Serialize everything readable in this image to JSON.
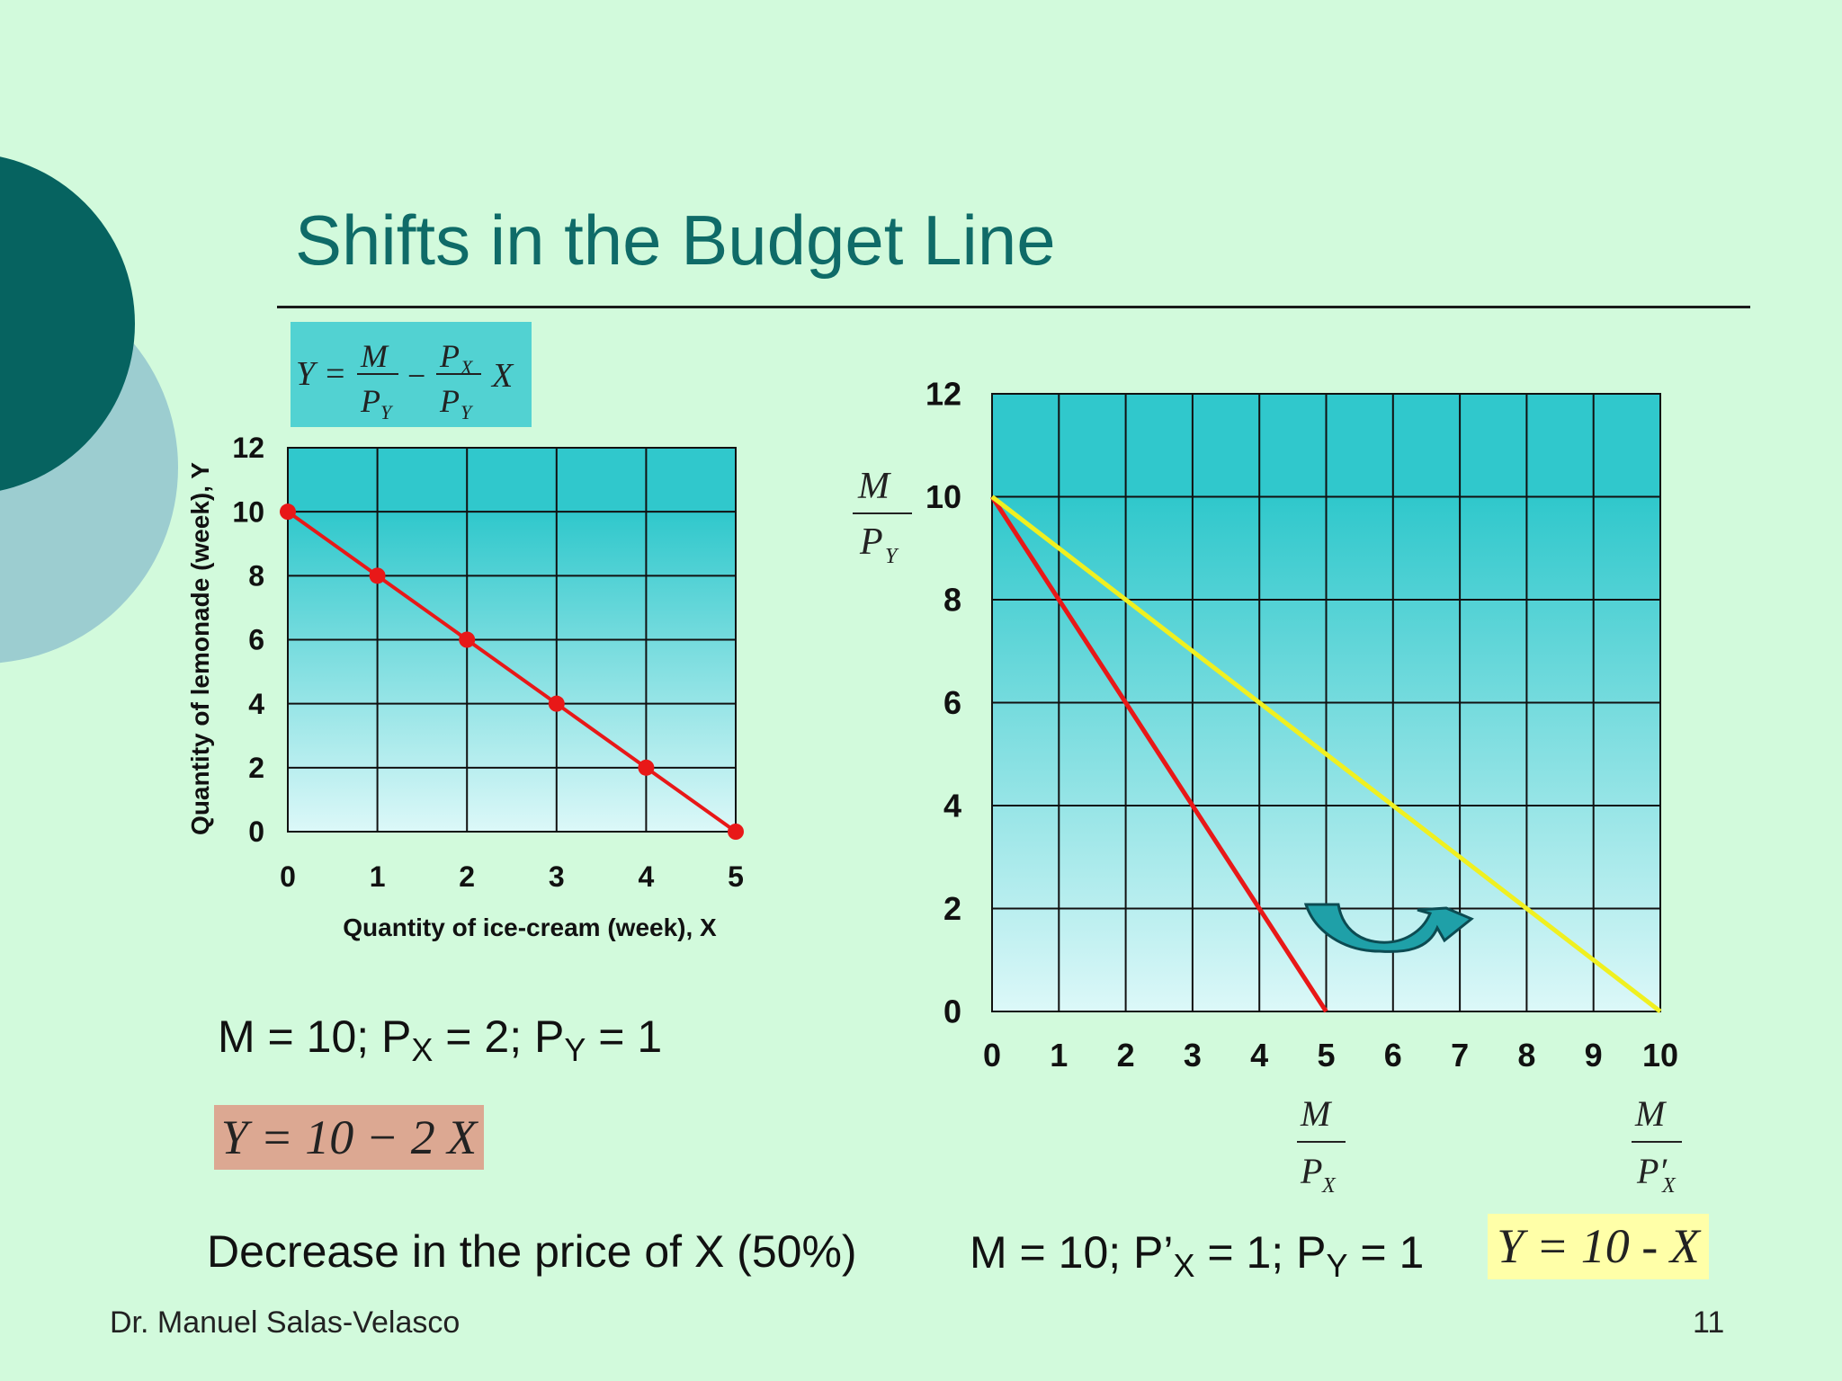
{
  "slide": {
    "title": "Shifts in the Budget Line",
    "author": "Dr. Manuel Salas-Velasco",
    "page_number": "11",
    "caption": "Decrease in the price of X (50%)"
  },
  "formula": {
    "lhs": "Y =",
    "m": "M",
    "py": "P",
    "py_sub": "Y",
    "minus": "−",
    "px": "P",
    "px_sub": "X",
    "py2": "P",
    "py2_sub": "Y",
    "x": "X"
  },
  "params1": {
    "m_label": "M = 10; P",
    "px_sub": "X",
    "mid": " = 2; P",
    "py_sub": "Y",
    "end": " = 1"
  },
  "params2": {
    "m_label": "M = 10; P’",
    "px_sub": "X",
    "mid": " = 1; P",
    "py_sub": "Y",
    "end": " = 1"
  },
  "equations": {
    "eq1": "Y = 10 − 2 X",
    "eq2": "Y = 10 - X"
  },
  "colors": {
    "original_line": "#e81818",
    "new_line": "#f0f020",
    "plot_top": "#30c8cc",
    "plot_bottom": "#dcf8f8",
    "arrow": "#1fa0a8"
  },
  "chart_data": [
    {
      "type": "line",
      "xlabel": "Quantity of ice-cream (week), X",
      "ylabel": "Quantity of lemonade (week), Y",
      "xlim": [
        0,
        5
      ],
      "ylim": [
        0,
        12
      ],
      "xticks": [
        "0",
        "1",
        "2",
        "3",
        "4",
        "5"
      ],
      "yticks": [
        "0",
        "2",
        "4",
        "6",
        "8",
        "10",
        "12"
      ],
      "grid": true,
      "series": [
        {
          "x": [
            0,
            1,
            2,
            3,
            4,
            5
          ],
          "y": [
            10,
            8,
            6,
            4,
            2,
            0
          ],
          "color": "#e81818",
          "markers": true
        }
      ]
    },
    {
      "type": "line",
      "xlim": [
        0,
        10
      ],
      "ylim": [
        0,
        12
      ],
      "xticks": [
        "0",
        "1",
        "2",
        "3",
        "4",
        "5",
        "6",
        "7",
        "8",
        "9",
        "10"
      ],
      "yticks": [
        "0",
        "2",
        "4",
        "6",
        "8",
        "10",
        "12"
      ],
      "grid": true,
      "series": [
        {
          "x": [
            0,
            5
          ],
          "y": [
            10,
            0
          ],
          "color": "#e81818"
        },
        {
          "x": [
            0,
            10
          ],
          "y": [
            10,
            0
          ],
          "color": "#f0f020"
        }
      ],
      "annotations": {
        "y_intercept": {
          "num": "M",
          "den": "P",
          "den_sub": "Y",
          "at_y": 10
        },
        "x_intercept_1": {
          "num": "M",
          "den": "P",
          "den_sub": "X",
          "at_x": 5
        },
        "x_intercept_2": {
          "num": "M",
          "den": "P′",
          "den_sub": "X",
          "at_x": 10
        }
      }
    }
  ]
}
